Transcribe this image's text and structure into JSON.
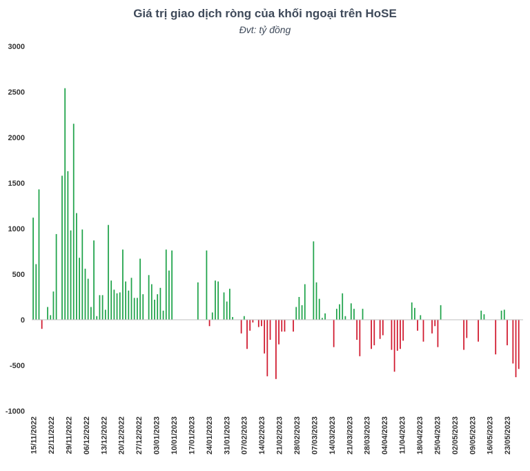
{
  "chart_data": {
    "type": "bar",
    "title": "Giá trị giao dịch ròng của khối ngoại trên HoSE",
    "subtitle": "Đvt: tỷ đồng",
    "xlabel": "",
    "ylabel": "",
    "ylim": [
      -1000,
      3000
    ],
    "yticks": [
      3000,
      2500,
      2000,
      1500,
      1000,
      500,
      0,
      -500,
      -1000
    ],
    "grid": false,
    "colors": {
      "positive": "#1fa34a",
      "negative": "#d0182d"
    },
    "x_labels": [
      "15/11/2022",
      "22/11/2022",
      "29/11/2022",
      "06/12/2022",
      "13/12/2022",
      "20/12/2022",
      "27/12/2022",
      "03/01/2023",
      "10/01/2023",
      "17/01/2023",
      "24/01/2023",
      "31/01/2023",
      "07/02/2023",
      "14/02/2023",
      "21/02/2023",
      "28/02/2023",
      "07/03/2023",
      "14/03/2023",
      "21/03/2023",
      "28/03/2023",
      "04/04/2023",
      "11/04/2023",
      "18/04/2023",
      "25/04/2023",
      "02/05/2023",
      "09/05/2023",
      "16/05/2023",
      "23/05/2023"
    ],
    "values": [
      1120,
      610,
      1430,
      -100,
      0,
      140,
      50,
      310,
      940,
      0,
      1580,
      2540,
      1630,
      980,
      2150,
      1170,
      680,
      990,
      560,
      450,
      140,
      870,
      40,
      270,
      270,
      110,
      1040,
      430,
      330,
      290,
      300,
      770,
      420,
      320,
      460,
      240,
      240,
      670,
      280,
      0,
      490,
      390,
      220,
      280,
      350,
      100,
      770,
      540,
      760,
      0,
      0,
      0,
      0,
      0,
      0,
      0,
      0,
      410,
      0,
      0,
      760,
      -70,
      80,
      430,
      420,
      0,
      300,
      200,
      340,
      30,
      0,
      0,
      -150,
      40,
      -320,
      -120,
      -30,
      0,
      -80,
      -70,
      -370,
      -620,
      -220,
      0,
      -650,
      -270,
      -130,
      -130,
      0,
      0,
      -130,
      140,
      250,
      160,
      390,
      0,
      0,
      860,
      410,
      230,
      20,
      70,
      0,
      0,
      -300,
      120,
      170,
      290,
      40,
      0,
      180,
      120,
      -220,
      -400,
      120,
      0,
      0,
      -320,
      -280,
      0,
      -210,
      -170,
      0,
      0,
      -330,
      -570,
      -340,
      -320,
      -230,
      0,
      0,
      190,
      130,
      -120,
      50,
      -240,
      0,
      0,
      -150,
      -70,
      -300,
      160,
      0,
      0,
      0,
      0,
      0,
      0,
      0,
      -330,
      -200,
      0,
      0,
      0,
      -240,
      100,
      60,
      0,
      0,
      0,
      -380,
      0,
      100,
      110,
      -280,
      0,
      -480,
      -630,
      -540,
      0
    ],
    "annotations": []
  }
}
